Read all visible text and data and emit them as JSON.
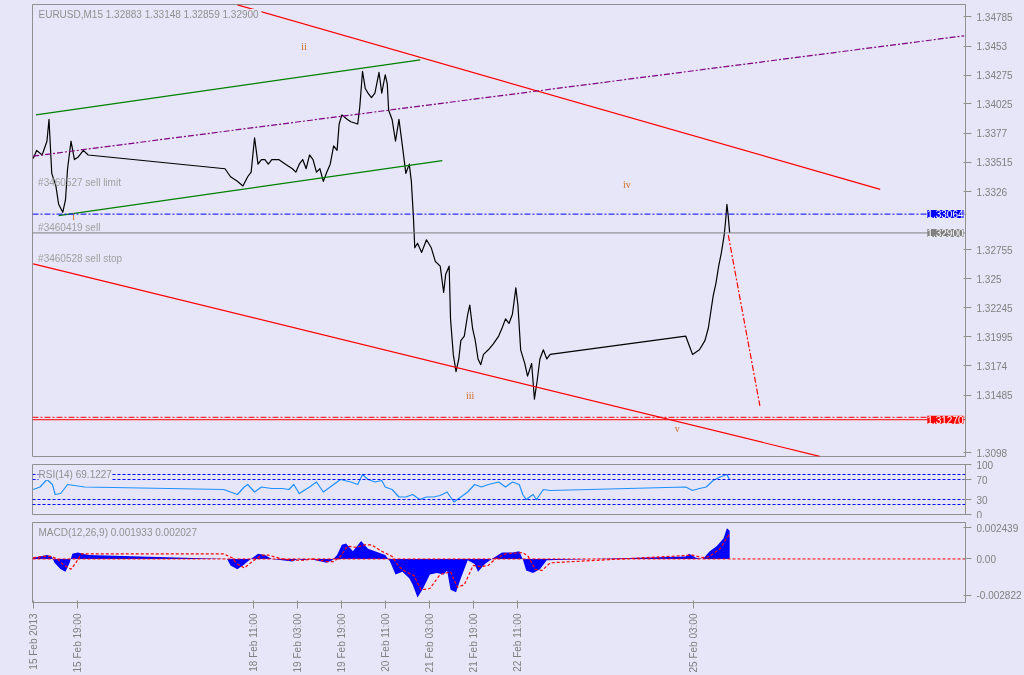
{
  "chart_data": [
    {
      "type": "line",
      "title": "EURUSD,M15  1.32883 1.33148 1.32859 1.32900",
      "xlim": [
        "2013-02-15T02:45",
        "2013-03-01T06:00"
      ],
      "ylim": [
        1.30949,
        1.34893
      ],
      "yticks": [
        1.3098,
        1.31485,
        1.3174,
        1.31995,
        1.32245,
        1.325,
        1.32755,
        1.3326,
        1.33515,
        1.3377,
        1.34025,
        1.34275,
        1.3453,
        1.34785
      ],
      "tick_labels": "y",
      "series": [
        {
          "color": "#000000",
          "line_style": "solid",
          "x": [
            "2013-02-15T03:00",
            "2013-02-15T04:15",
            "2013-02-15T06:15",
            "2013-02-15T08:00",
            "2013-02-15T08:45",
            "2013-02-15T09:45",
            "2013-02-15T11:15",
            "2013-02-15T12:15",
            "2013-02-15T13:45",
            "2013-02-15T14:45",
            "2013-02-15T15:30",
            "2013-02-15T16:45",
            "2013-02-15T18:00",
            "2013-02-15T19:15",
            "2013-02-15T21:15",
            "2013-02-15T23:00",
            "2013-02-18T00:45",
            "2013-02-18T02:45",
            "2013-02-18T05:15",
            "2013-02-18T07:15",
            "2013-02-18T09:00",
            "2013-02-18T10:15",
            "2013-02-18T11:30",
            "2013-02-18T12:45",
            "2013-02-18T14:00",
            "2013-02-18T15:15",
            "2013-02-18T16:30",
            "2013-02-18T17:45",
            "2013-02-18T20:15",
            "2013-02-18T22:45",
            "2013-02-19T01:15",
            "2013-02-19T02:30",
            "2013-02-19T03:45",
            "2013-02-19T05:00",
            "2013-02-19T06:15",
            "2013-02-19T07:30",
            "2013-02-19T08:45",
            "2013-02-19T10:00",
            "2013-02-19T11:15",
            "2013-02-19T12:30",
            "2013-02-19T13:45",
            "2013-02-19T15:00",
            "2013-02-19T16:15",
            "2013-02-19T17:30",
            "2013-02-19T18:15",
            "2013-02-19T19:15",
            "2013-02-19T21:15",
            "2013-02-19T22:30",
            "2013-02-20T01:00",
            "2013-02-20T01:45",
            "2013-02-20T02:45",
            "2013-02-20T03:45",
            "2013-02-20T04:45",
            "2013-02-20T06:00",
            "2013-02-20T07:15",
            "2013-02-20T08:45",
            "2013-02-20T09:45",
            "2013-02-20T11:00",
            "2013-02-20T11:45",
            "2013-02-20T12:15",
            "2013-02-20T13:30",
            "2013-02-20T14:45",
            "2013-02-20T16:00",
            "2013-02-20T17:15",
            "2013-02-20T18:30",
            "2013-02-20T19:45",
            "2013-02-20T20:30",
            "2013-02-20T21:15",
            "2013-02-20T21:45",
            "2013-02-20T22:45",
            "2013-02-21T00:15",
            "2013-02-21T02:00",
            "2013-02-21T03:45",
            "2013-02-21T05:15",
            "2013-02-21T07:00",
            "2013-02-21T08:15",
            "2013-02-21T09:00",
            "2013-02-21T10:15",
            "2013-02-21T10:45",
            "2013-02-21T11:45",
            "2013-02-21T12:45",
            "2013-02-21T13:45",
            "2013-02-21T14:30",
            "2013-02-21T15:45",
            "2013-02-21T17:00",
            "2013-02-21T17:45",
            "2013-02-21T18:45",
            "2013-02-21T19:45",
            "2013-02-21T20:45",
            "2013-02-21T21:45",
            "2013-02-21T22:45",
            "2013-02-22T00:30",
            "2013-02-22T02:15",
            "2013-02-22T04:15",
            "2013-02-22T05:30",
            "2013-02-22T06:45",
            "2013-02-22T08:00",
            "2013-02-22T09:15",
            "2013-02-22T10:30",
            "2013-02-22T11:15",
            "2013-02-22T12:15",
            "2013-02-22T13:45",
            "2013-02-22T14:45",
            "2013-02-22T16:15",
            "2013-02-22T17:15",
            "2013-02-22T18:15",
            "2013-02-22T19:15",
            "2013-02-22T20:30",
            "2013-02-22T21:45",
            "2013-02-22T23:00",
            "2013-02-25T00:15",
            "2013-02-25T01:30",
            "2013-02-25T02:45",
            "2013-02-25T05:15",
            "2013-02-25T07:15",
            "2013-02-25T08:30",
            "2013-02-25T09:15",
            "2013-02-25T10:15",
            "2013-02-25T11:15",
            "2013-02-25T12:15",
            "2013-02-25T13:15",
            "2013-02-25T14:15",
            "2013-02-25T14:45",
            "2013-02-25T15:15",
            "2013-02-25T15:45",
            "2013-02-25T16:15"
          ],
          "values": [
            1.3355,
            1.3362,
            1.3358,
            1.337,
            1.3389,
            1.3342,
            1.3331,
            1.3315,
            1.3308,
            1.3319,
            1.3346,
            1.337,
            1.3354,
            1.3356,
            1.3362,
            1.3358,
            1.3346,
            1.3339,
            1.3335,
            1.3331,
            1.3339,
            1.3343,
            1.3373,
            1.335,
            1.3354,
            1.3354,
            1.335,
            1.3354,
            1.3354,
            1.335,
            1.3346,
            1.3343,
            1.335,
            1.3354,
            1.3346,
            1.3358,
            1.3354,
            1.3343,
            1.3346,
            1.3335,
            1.3343,
            1.335,
            1.3366,
            1.3362,
            1.3385,
            1.3393,
            1.3389,
            1.3387,
            1.3385,
            1.34,
            1.3431,
            1.3416,
            1.3412,
            1.3408,
            1.3412,
            1.343,
            1.3412,
            1.3428,
            1.342,
            1.3397,
            1.3389,
            1.337,
            1.3389,
            1.3366,
            1.3342,
            1.335,
            1.3335,
            1.3304,
            1.3277,
            1.3281,
            1.3273,
            1.3284,
            1.3277,
            1.3265,
            1.3261,
            1.3238,
            1.3254,
            1.3261,
            1.3215,
            1.3184,
            1.3169,
            1.318,
            1.3196,
            1.32,
            1.3219,
            1.3227,
            1.3207,
            1.3196,
            1.318,
            1.3175,
            1.3184,
            1.3188,
            1.3193,
            1.32,
            1.3207,
            1.3215,
            1.3211,
            1.3219,
            1.3242,
            1.3227,
            1.3188,
            1.3176,
            1.3165,
            1.3176,
            1.3145,
            1.3161,
            1.318,
            1.3188,
            1.318,
            1.3184,
            1.32,
            1.3192,
            1.3184,
            1.3188,
            1.3196,
            1.3207,
            1.3219,
            1.3235,
            1.3246,
            1.3261,
            1.3273,
            1.3288,
            1.33,
            1.3315,
            1.3304,
            1.329
          ]
        },
        {
          "color": "#ff0000",
          "line_style": "solid",
          "x": [
            "2013-02-18T05:15",
            "2013-02-27T23:00"
          ],
          "values": [
            1.3489,
            1.3328
          ]
        },
        {
          "color": "#ff0000",
          "line_style": "solid",
          "x": [
            "2013-02-15T03:00",
            "2013-02-27T01:00"
          ],
          "values": [
            1.3263,
            1.3095
          ]
        },
        {
          "color": "#008000",
          "line_style": "solid",
          "x": [
            "2013-02-15T04:00",
            "2013-02-20T23:45"
          ],
          "values": [
            1.3393,
            1.3441
          ]
        },
        {
          "color": "#008000",
          "line_style": "solid",
          "x": [
            "2013-02-15T12:15",
            "2013-02-21T07:45"
          ],
          "values": [
            1.3305,
            1.3353
          ]
        },
        {
          "color": "#800080",
          "line_style": "dashdot",
          "x": [
            "2013-02-15T03:00",
            "2013-03-01T05:30"
          ],
          "values": [
            1.3357,
            1.3462
          ]
        },
        {
          "color": "#ff0000",
          "line_style": "dashdot",
          "x": [
            "2013-02-25T15:45",
            "2013-02-26T03:15"
          ],
          "values": [
            1.3288,
            1.3139
          ]
        }
      ],
      "ref_lines": [
        {
          "axis": "y",
          "value": 1.33064,
          "label": "1.33064",
          "color": "#0000ff",
          "line_style": "dashdot"
        },
        {
          "axis": "y",
          "value": 1.329,
          "label": "1.32900",
          "color": "#808080",
          "line_style": "solid"
        },
        {
          "axis": "y",
          "value": 1.31291,
          "color": "#ff0000",
          "line_style": "dashdot"
        },
        {
          "axis": "y",
          "value": 1.3127,
          "label": "1.31270",
          "color": "#ff0000",
          "line_style": "solid"
        }
      ],
      "annotations": [
        "i",
        "ii",
        "iii",
        "iv",
        "v",
        "#3460527 sell limit",
        "#3460419 sell",
        "#3460528 sell stop"
      ],
      "grid": false,
      "marker": "none"
    },
    {
      "type": "line",
      "title": "RSI(14) 69.1227",
      "xlim": [
        "2013-02-15T02:45",
        "2013-03-01T06:00"
      ],
      "ylim": [
        0,
        100
      ],
      "yticks": [
        0,
        30,
        70,
        100
      ],
      "tick_labels": "y",
      "series": [
        {
          "color": "#1e90ff",
          "line_style": "solid",
          "x": [
            "2013-02-15T03:00",
            "2013-02-15T05:30",
            "2013-02-15T08:00",
            "2013-02-15T10:00",
            "2013-02-15T11:00",
            "2013-02-15T13:00",
            "2013-02-15T15:30",
            "2013-02-15T18:00",
            "2013-02-15T21:45",
            "2013-02-18T00:15",
            "2013-02-18T02:45",
            "2013-02-18T05:15",
            "2013-02-18T07:45",
            "2013-02-18T09:00",
            "2013-02-18T11:30",
            "2013-02-18T14:00",
            "2013-02-18T17:45",
            "2013-02-18T21:30",
            "2013-02-19T00:00",
            "2013-02-19T01:45",
            "2013-02-19T03:45",
            "2013-02-19T07:30",
            "2013-02-19T10:00",
            "2013-02-19T12:30",
            "2013-02-19T16:15",
            "2013-02-19T18:45",
            "2013-02-19T22:30",
            "2013-02-20T01:00",
            "2013-02-20T02:45",
            "2013-02-20T04:45",
            "2013-02-20T07:15",
            "2013-02-20T09:45",
            "2013-02-20T11:00",
            "2013-02-20T13:30",
            "2013-02-20T16:00",
            "2013-02-20T18:30",
            "2013-02-20T21:00",
            "2013-02-20T23:30",
            "2013-02-21T02:00",
            "2013-02-21T04:30",
            "2013-02-21T07:00",
            "2013-02-21T09:30",
            "2013-02-21T10:45",
            "2013-02-21T12:00",
            "2013-02-21T14:30",
            "2013-02-21T17:00",
            "2013-02-21T19:30",
            "2013-02-21T22:00",
            "2013-02-22T00:30",
            "2013-02-22T04:15",
            "2013-02-22T06:45",
            "2013-02-22T09:15",
            "2013-02-22T11:45",
            "2013-02-22T13:00",
            "2013-02-22T14:15",
            "2013-02-22T16:45",
            "2013-02-22T18:00",
            "2013-02-22T20:30",
            "2013-02-22T23:00",
            "2013-02-25T00:15",
            "2013-02-25T02:45",
            "2013-02-25T05:15",
            "2013-02-25T07:45",
            "2013-02-25T10:15",
            "2013-02-25T12:45",
            "2013-02-25T15:15",
            "2013-02-25T16:15"
          ],
          "values": [
            50,
            55,
            70,
            60,
            40,
            42,
            60,
            58,
            55,
            50,
            45,
            40,
            55,
            60,
            45,
            55,
            52,
            52,
            50,
            60,
            42,
            55,
            65,
            45,
            60,
            70,
            65,
            60,
            80,
            70,
            65,
            68,
            55,
            50,
            35,
            35,
            40,
            30,
            35,
            35,
            38,
            45,
            35,
            25,
            35,
            45,
            60,
            55,
            60,
            65,
            55,
            65,
            60,
            40,
            30,
            40,
            30,
            50,
            48,
            55,
            48,
            52,
            55,
            68,
            75,
            80,
            69
          ]
        }
      ],
      "ref_lines": [
        {
          "axis": "y",
          "value": 80,
          "color": "#0000ff",
          "line_style": "dashed"
        },
        {
          "axis": "y",
          "value": 70,
          "color": "#0000ff",
          "line_style": "dashed"
        },
        {
          "axis": "y",
          "value": 30,
          "color": "#0000ff",
          "line_style": "dashed"
        },
        {
          "axis": "y",
          "value": 20,
          "color": "#0000ff",
          "line_style": "dashed"
        }
      ],
      "grid": false,
      "marker": "none"
    },
    {
      "type": "line",
      "title": "MACD(12,26,9) 0.001933 0.002027",
      "xlim": [
        "2013-02-15T02:45",
        "2013-03-01T06:00"
      ],
      "ylim": [
        -0.00339,
        0.00284
      ],
      "xticks": [
        {
          "value": "2013-02-15T03:00",
          "label": "15 Feb 2013"
        },
        {
          "value": "2013-02-15T19:00",
          "label": "15 Feb 19:00"
        },
        {
          "value": "2013-02-18T11:00",
          "label": "18 Feb 11:00"
        },
        {
          "value": "2013-02-19T03:00",
          "label": "19 Feb 03:00"
        },
        {
          "value": "2013-02-19T19:00",
          "label": "19 Feb 19:00"
        },
        {
          "value": "2013-02-20T11:00",
          "label": "20 Feb 11:00"
        },
        {
          "value": "2013-02-21T03:00",
          "label": "21 Feb 03:00"
        },
        {
          "value": "2013-02-21T19:00",
          "label": "21 Feb 19:00"
        },
        {
          "value": "2013-02-22T11:00",
          "label": "22 Feb 11:00"
        },
        {
          "value": "2013-02-25T03:00",
          "label": "25 Feb 03:00"
        }
      ],
      "yticks": [
        -0.002822,
        {
          "value": 0,
          "label": "0.00"
        },
        0.002439
      ],
      "series": [
        {
          "type": "area",
          "color": "#0000ff",
          "x": [
            "2013-02-15T03:00",
            "2013-02-15T05:30",
            "2013-02-15T08:00",
            "2013-02-15T09:45",
            "2013-02-15T10:45",
            "2013-02-15T13:00",
            "2013-02-15T14:45",
            "2013-02-15T16:15",
            "2013-02-15T17:15",
            "2013-02-15T19:15",
            "2013-02-15T23:00",
            "2013-02-18T01:30",
            "2013-02-18T02:45",
            "2013-02-18T05:15",
            "2013-02-18T07:15",
            "2013-02-18T09:00",
            "2013-02-18T10:45",
            "2013-02-18T12:45",
            "2013-02-18T15:15",
            "2013-02-18T17:45",
            "2013-02-18T21:30",
            "2013-02-19T01:15",
            "2013-02-19T03:15",
            "2013-02-19T05:00",
            "2013-02-19T07:30",
            "2013-02-19T13:45",
            "2013-02-19T15:45",
            "2013-02-19T17:30",
            "2013-02-19T19:15",
            "2013-02-19T20:45",
            "2013-02-19T23:15",
            "2013-02-20T02:15",
            "2013-02-20T04:45",
            "2013-02-20T08:30",
            "2013-02-20T11:00",
            "2013-02-20T12:45",
            "2013-02-20T14:45",
            "2013-02-20T17:15",
            "2013-02-20T19:45",
            "2013-02-20T21:00",
            "2013-02-20T22:45",
            "2013-02-21T00:45",
            "2013-02-21T03:15",
            "2013-02-21T05:45",
            "2013-02-21T08:15",
            "2013-02-21T09:30",
            "2013-02-21T10:45",
            "2013-02-21T12:45",
            "2013-02-21T14:30",
            "2013-02-21T17:00",
            "2013-02-21T19:30",
            "2013-02-21T20:45",
            "2013-02-21T23:15",
            "2013-02-22T01:45",
            "2013-02-22T05:30",
            "2013-02-22T09:15",
            "2013-02-22T11:45",
            "2013-02-22T13:00",
            "2013-02-22T14:15",
            "2013-02-22T16:45",
            "2013-02-22T19:15",
            "2013-02-22T21:45",
            "2013-02-25T00:15",
            "2013-02-25T01:30",
            "2013-02-25T04:00",
            "2013-02-25T06:30",
            "2013-02-25T09:00",
            "2013-02-25T11:30",
            "2013-02-25T14:00",
            "2013-02-25T15:15",
            "2013-02-25T16:15"
          ],
          "values": [
            0.0001,
            0.0002,
            0.0003,
            0.0002,
            -0.0003,
            -0.0008,
            -0.001,
            -0.0003,
            0.0004,
            0.0005,
            0.0003,
            0,
            -0.0005,
            -0.0008,
            -0.0005,
            -0.0002,
            0.0001,
            0.0004,
            0.0003,
            0,
            -0.0001,
            -0.0002,
            0,
            -0.0001,
            0,
            -0.0003,
            -0.0001,
            0.0003,
            0.0011,
            0.0012,
            0.0006,
            0.0014,
            0.0008,
            0.0005,
            0.0003,
            -0.0002,
            -0.0012,
            -0.001,
            -0.0015,
            -0.002,
            -0.003,
            -0.0023,
            -0.0012,
            -0.0011,
            -0.0012,
            -0.0009,
            -0.0024,
            -0.0026,
            -0.0015,
            -0.0001,
            -0.0004,
            -0.001,
            -0.0004,
            0,
            0.0005,
            0.0005,
            0.0006,
            0,
            -0.0009,
            -0.0011,
            -0.0008,
            -0.0001,
            0.0002,
            0.0004,
            0.0001,
            0,
            0.0006,
            0.001,
            0.0016,
            0.0024,
            0.0022
          ]
        },
        {
          "color": "#ff0000",
          "line_style": "dashed",
          "x": [
            "2013-02-15T03:00",
            "2013-02-15T06:45",
            "2013-02-15T09:45",
            "2013-02-15T11:45",
            "2013-02-15T14:15",
            "2013-02-15T16:45",
            "2013-02-15T18:30",
            "2013-02-15T20:30",
            "2013-02-18T00:15",
            "2013-02-18T03:15",
            "2013-02-18T05:15",
            "2013-02-18T07:45",
            "2013-02-18T09:30",
            "2013-02-18T12:00",
            "2013-02-18T14:00",
            "2013-02-18T16:30",
            "2013-02-18T21:30",
            "2013-02-19T01:15",
            "2013-02-19T05:00",
            "2013-02-19T08:45",
            "2013-02-19T13:45",
            "2013-02-19T16:15",
            "2013-02-19T18:45",
            "2013-02-19T21:15",
            "2013-02-20T00:30",
            "2013-02-20T03:30",
            "2013-02-20T06:00",
            "2013-02-20T09:45",
            "2013-02-20T13:30",
            "2013-02-20T16:00",
            "2013-02-20T18:30",
            "2013-02-20T21:30",
            "2013-02-21T00:00",
            "2013-02-21T03:15",
            "2013-02-21T07:00",
            "2013-02-21T10:45",
            "2013-02-21T13:15",
            "2013-02-21T15:45",
            "2013-02-21T19:00",
            "2013-02-21T22:00",
            "2013-02-22T00:30",
            "2013-02-22T03:00",
            "2013-02-22T06:45",
            "2013-02-22T13:00",
            "2013-02-22T15:00",
            "2013-02-22T17:30",
            "2013-02-22T20:00",
            "2013-02-22T23:00",
            "2013-02-25T02:45",
            "2013-02-25T06:30",
            "2013-02-25T09:00",
            "2013-02-25T12:45",
            "2013-02-25T16:00",
            "2013-02-25T16:15"
          ],
          "values": [
            0.0001,
            0.0002,
            0.0002,
            0,
            -0.0005,
            -0.0008,
            -0.0003,
            0.0004,
            0.0004,
            0.0001,
            -0.0004,
            -0.0007,
            -0.0004,
            0,
            0.0003,
            0.0003,
            0,
            -0.0001,
            -0.0001,
            0,
            -0.0002,
            -0.0002,
            0.0002,
            0.001,
            0.0009,
            0.0011,
            0.0011,
            0.0006,
            0.0002,
            -0.0006,
            -0.001,
            -0.0013,
            -0.0024,
            -0.0023,
            -0.0012,
            -0.001,
            -0.0022,
            -0.002,
            -0.0005,
            -0.0006,
            -0.0005,
            0,
            0.0004,
            0.0005,
            0.0002,
            -0.0008,
            -0.0009,
            -0.0003,
            0.0003,
            0.0001,
            0.0002,
            0.0008,
            0.0019,
            0.002
          ]
        }
      ],
      "ref_lines": [
        {
          "axis": "y",
          "value": 0,
          "color": "#ff0000",
          "line_style": "dashed"
        }
      ],
      "grid": false,
      "marker": "none"
    }
  ]
}
